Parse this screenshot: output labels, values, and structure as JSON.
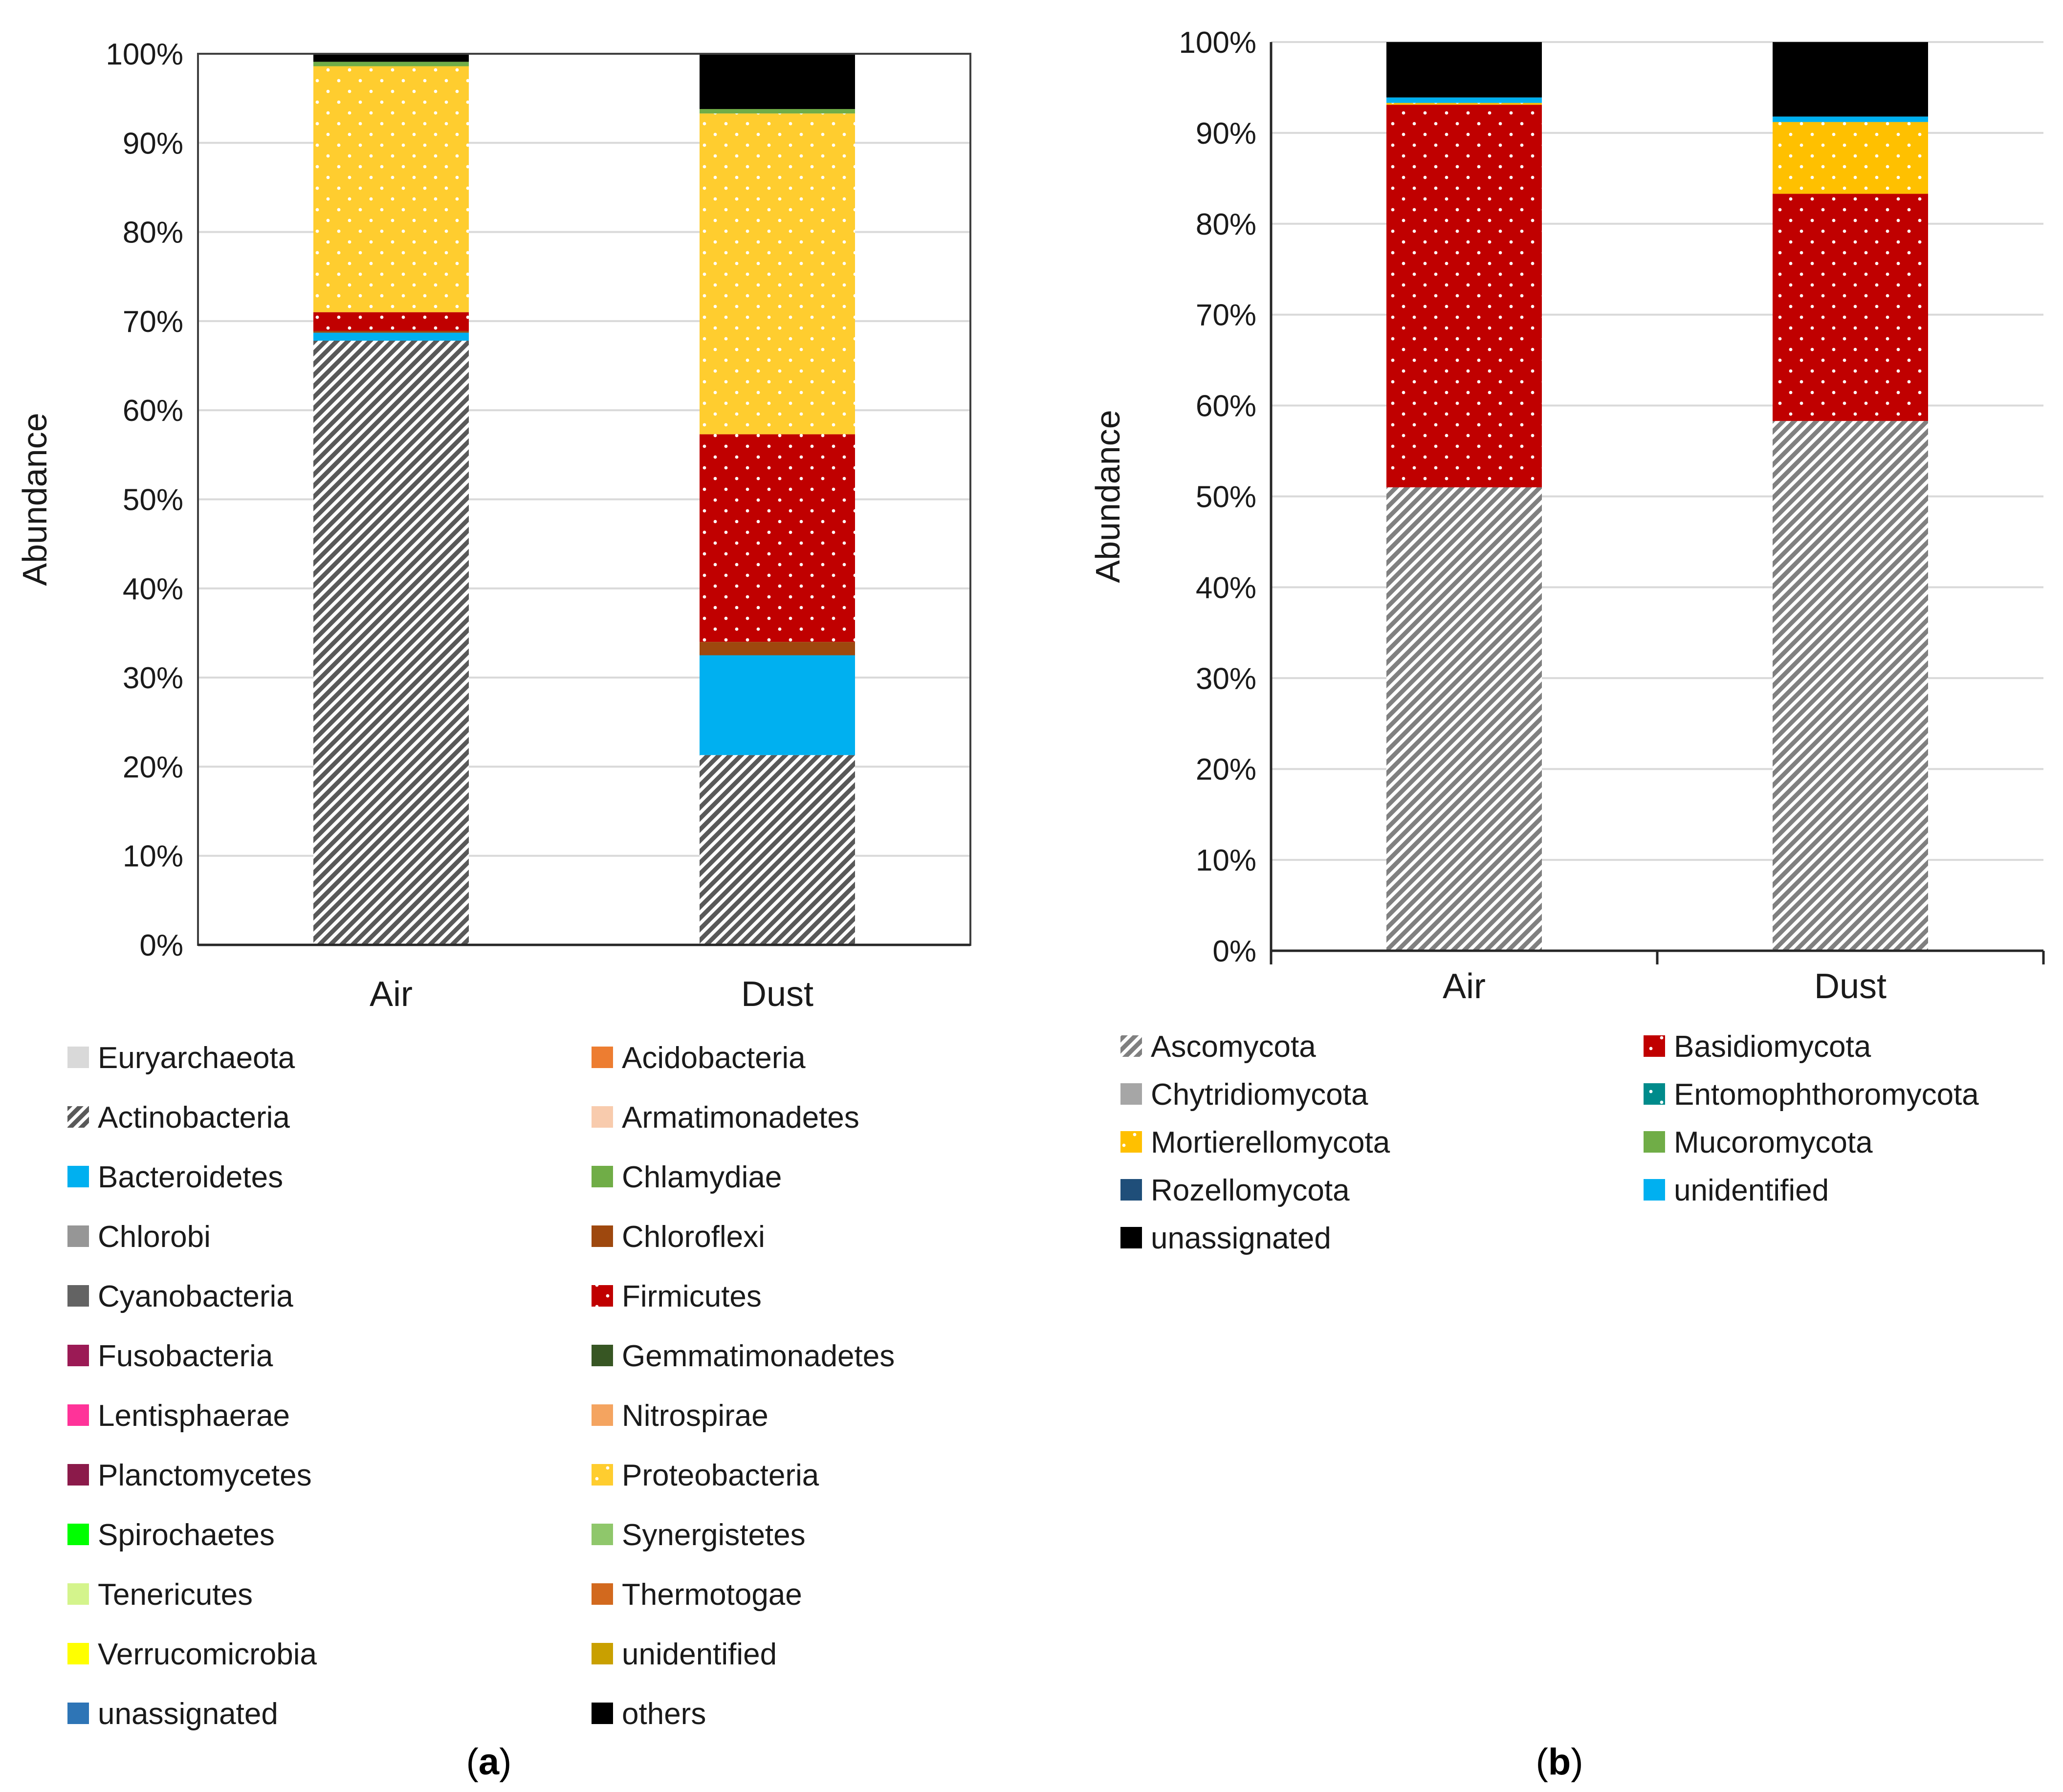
{
  "colors": {
    "grid": "#d9d9d9",
    "axis": "#262626",
    "Actinobacteria": "#595959",
    "Bacteroidetes": "#00b0f0",
    "Firmicutes": "#c00000",
    "Chloroflexi": "#9e480e",
    "Proteobacteria": "#ffcd2f",
    "Chlamydiae": "#70ad47",
    "others": "#000000",
    "Ascomycota": "#808080",
    "Basidiomycota": "#c00000",
    "Mortierellomycota": "#ffc000",
    "unidentified": "#00b0f0",
    "unassignated": "#000000"
  },
  "chart_data": [
    {
      "id": "a",
      "type": "bar",
      "stacked": true,
      "caption": "a",
      "categories": [
        "Air",
        "Dust"
      ],
      "ylabel": "Abundance",
      "ylim": [
        0,
        100
      ],
      "yticks": [
        "0%",
        "10%",
        "20%",
        "30%",
        "40%",
        "50%",
        "60%",
        "70%",
        "80%",
        "90%",
        "100%"
      ],
      "series": [
        {
          "name": "Actinobacteria",
          "values": [
            67.8,
            21.3
          ],
          "pattern": "diag"
        },
        {
          "name": "Bacteroidetes",
          "values": [
            0.9,
            11.2
          ],
          "pattern": "solid"
        },
        {
          "name": "Chloroflexi",
          "values": [
            0.2,
            1.5
          ],
          "pattern": "solid"
        },
        {
          "name": "Firmicutes",
          "values": [
            2.1,
            23.3
          ],
          "pattern": "dots"
        },
        {
          "name": "Proteobacteria",
          "values": [
            27.6,
            36.0
          ],
          "pattern": "dots"
        },
        {
          "name": "Chlamydiae",
          "values": [
            0.5,
            0.5
          ],
          "pattern": "solid"
        },
        {
          "name": "others",
          "values": [
            0.9,
            6.2
          ],
          "pattern": "solid"
        }
      ],
      "legend": [
        {
          "label": "Euryarchaeota",
          "color": "#d9d9d9",
          "pattern": "solid"
        },
        {
          "label": "Acidobacteria",
          "color": "#ed7d31",
          "pattern": "solid"
        },
        {
          "label": "Actinobacteria",
          "color": "#595959",
          "pattern": "diag"
        },
        {
          "label": "Armatimonadetes",
          "color": "#f8cbad",
          "pattern": "solid"
        },
        {
          "label": "Bacteroidetes",
          "color": "#00b0f0",
          "pattern": "solid"
        },
        {
          "label": "Chlamydiae",
          "color": "#70ad47",
          "pattern": "solid"
        },
        {
          "label": "Chlorobi",
          "color": "#969696",
          "pattern": "solid"
        },
        {
          "label": "Chloroflexi",
          "color": "#9e480e",
          "pattern": "solid"
        },
        {
          "label": "Cyanobacteria",
          "color": "#636363",
          "pattern": "solid"
        },
        {
          "label": "Firmicutes",
          "color": "#c00000",
          "pattern": "dots"
        },
        {
          "label": "Fusobacteria",
          "color": "#9b1a55",
          "pattern": "solid"
        },
        {
          "label": "Gemmatimonadetes",
          "color": "#375623",
          "pattern": "solid"
        },
        {
          "label": "Lentisphaerae",
          "color": "#ff3399",
          "pattern": "solid"
        },
        {
          "label": "Nitrospirae",
          "color": "#f4a460",
          "pattern": "solid"
        },
        {
          "label": "Planctomycetes",
          "color": "#8b1a4a",
          "pattern": "solid"
        },
        {
          "label": "Proteobacteria",
          "color": "#ffcd2f",
          "pattern": "dots"
        },
        {
          "label": "Spirochaetes",
          "color": "#00ff00",
          "pattern": "solid"
        },
        {
          "label": "Synergistetes",
          "color": "#8fc76b",
          "pattern": "solid"
        },
        {
          "label": "Tenericutes",
          "color": "#d4f48c",
          "pattern": "solid"
        },
        {
          "label": "Thermotogae",
          "color": "#d2691e",
          "pattern": "solid"
        },
        {
          "label": "Verrucomicrobia",
          "color": "#ffff00",
          "pattern": "solid"
        },
        {
          "label": "unidentified",
          "color": "#c9a000",
          "pattern": "solid"
        },
        {
          "label": "unassignated",
          "color": "#2e75b6",
          "pattern": "solid"
        },
        {
          "label": "others",
          "color": "#000000",
          "pattern": "solid"
        }
      ]
    },
    {
      "id": "b",
      "type": "bar",
      "stacked": true,
      "caption": "b",
      "categories": [
        "Air",
        "Dust"
      ],
      "ylabel": "Abundance",
      "ylim": [
        0,
        100
      ],
      "yticks": [
        "0%",
        "10%",
        "20%",
        "30%",
        "40%",
        "50%",
        "60%",
        "70%",
        "80%",
        "90%",
        "100%"
      ],
      "series": [
        {
          "name": "Ascomycota",
          "values": [
            51.0,
            58.3
          ],
          "pattern": "diag"
        },
        {
          "name": "Basidiomycota",
          "values": [
            42.1,
            25.0
          ],
          "pattern": "dots"
        },
        {
          "name": "Mortierellomycota",
          "values": [
            0.2,
            7.9
          ],
          "pattern": "dots"
        },
        {
          "name": "unidentified",
          "values": [
            0.6,
            0.6
          ],
          "pattern": "solid"
        },
        {
          "name": "unassignated",
          "values": [
            6.1,
            8.2
          ],
          "pattern": "solid"
        }
      ],
      "legend": [
        {
          "label": "Ascomycota",
          "color": "#808080",
          "pattern": "diag"
        },
        {
          "label": "Basidiomycota",
          "color": "#c00000",
          "pattern": "dots"
        },
        {
          "label": "Chytridiomycota",
          "color": "#a6a6a6",
          "pattern": "solid"
        },
        {
          "label": "Entomophthoromycota",
          "color": "#008b8b",
          "pattern": "dots"
        },
        {
          "label": "Mortierellomycota",
          "color": "#ffc000",
          "pattern": "dots"
        },
        {
          "label": "Mucoromycota",
          "color": "#70ad47",
          "pattern": "solid"
        },
        {
          "label": "Rozellomycota",
          "color": "#1f4e79",
          "pattern": "solid"
        },
        {
          "label": "unidentified",
          "color": "#00b0f0",
          "pattern": "solid"
        },
        {
          "label": "unassignated",
          "color": "#000000",
          "pattern": "solid"
        }
      ]
    }
  ]
}
